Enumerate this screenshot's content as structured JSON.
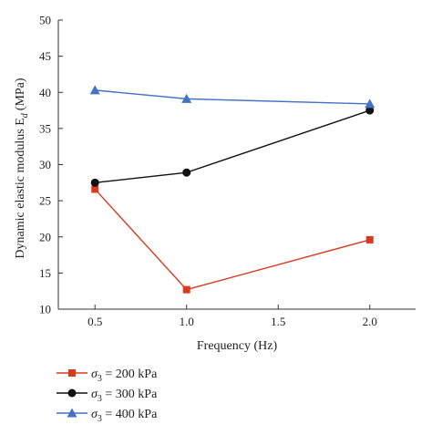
{
  "chart_data": {
    "type": "line",
    "xlabel": "Frequency (Hz)",
    "ylabel": "Dynamic elastic modulus E",
    "ylabel_subscript": "d",
    "ylabel_unit": "(MPa)",
    "x_tick_labels": [
      "0.5",
      "1.0",
      "1.5",
      "2.0"
    ],
    "y_ticks": [
      10,
      15,
      20,
      25,
      30,
      35,
      40,
      45,
      50
    ],
    "xlim": [
      0.3,
      2.25
    ],
    "ylim": [
      10,
      50
    ],
    "x": [
      0.5,
      1.0,
      2.0
    ],
    "grid": false,
    "legend_position": "bottom-left",
    "series": [
      {
        "name": "σ₃ = 200 kPa",
        "label_prefix": "σ",
        "label_sub": "3",
        "label_rest": " = 200 kPa",
        "color": "#d9391e",
        "marker": "square",
        "values": [
          26.6,
          12.7,
          19.6
        ]
      },
      {
        "name": "σ₃ = 300 kPa",
        "label_prefix": "σ",
        "label_sub": "3",
        "label_rest": " = 300 kPa",
        "color": "#111111",
        "marker": "circle",
        "values": [
          27.5,
          28.9,
          37.5
        ]
      },
      {
        "name": "σ₃ = 400 kPa",
        "label_prefix": "σ",
        "label_sub": "3",
        "label_rest": " = 400 kPa",
        "color": "#4472c4",
        "marker": "triangle",
        "values": [
          40.3,
          39.1,
          38.4
        ]
      }
    ]
  }
}
